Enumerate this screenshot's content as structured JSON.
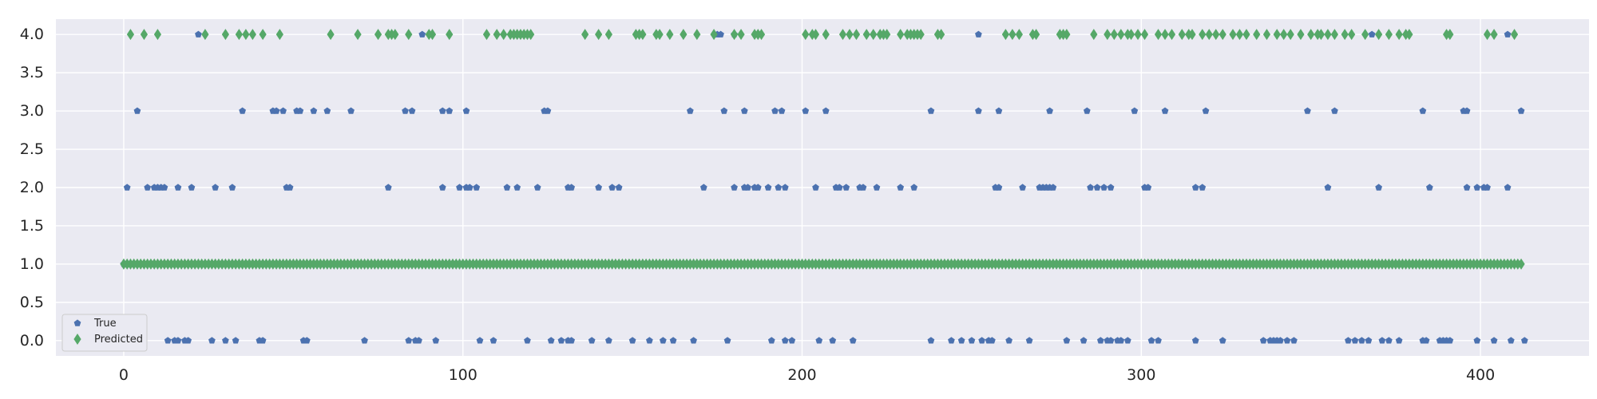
{
  "chart_data": {
    "type": "scatter",
    "xlim": [
      -20,
      432
    ],
    "ylim": [
      -0.2,
      4.2
    ],
    "xticks": [
      0,
      100,
      200,
      300,
      400
    ],
    "yticks": [
      0.0,
      0.5,
      1.0,
      1.5,
      2.0,
      2.5,
      3.0,
      3.5,
      4.0
    ],
    "grid": true,
    "legend_position": "lower-left",
    "series": [
      {
        "name": "True",
        "color": "#4c72b0",
        "marker": "pentagon",
        "points": {
          "0": [
            13,
            15,
            16,
            18,
            19,
            26,
            30,
            33,
            40,
            41,
            53,
            54,
            71,
            84,
            86,
            87,
            92,
            105,
            109,
            119,
            126,
            129,
            131,
            132,
            138,
            143,
            150,
            155,
            159,
            162,
            168,
            178,
            191,
            195,
            197,
            205,
            209,
            215,
            238,
            244,
            247,
            250,
            253,
            255,
            256,
            261,
            267,
            278,
            283,
            288,
            290,
            291,
            293,
            294,
            296,
            303,
            305,
            316,
            324,
            336,
            338,
            339,
            340,
            341,
            343,
            345,
            361,
            363,
            365,
            367,
            371,
            373,
            376,
            383,
            384,
            388,
            389,
            390,
            391,
            399,
            404,
            409,
            413
          ],
          "1": [
            0,
            1,
            2,
            238,
            239,
            240,
            241,
            242,
            243,
            244,
            245,
            246,
            247,
            248,
            249,
            250,
            251,
            252,
            253,
            254,
            255,
            256,
            257,
            258,
            259,
            260,
            261,
            262,
            263,
            264,
            265,
            266,
            267,
            268,
            269,
            270,
            271,
            272,
            273,
            274,
            275,
            276,
            277,
            278,
            279,
            280
          ],
          "2": [
            1,
            7,
            9,
            10,
            11,
            12,
            16,
            20,
            27,
            32,
            48,
            49,
            78,
            94,
            99,
            101,
            102,
            104,
            113,
            116,
            122,
            131,
            132,
            140,
            144,
            146,
            171,
            180,
            183,
            184,
            186,
            187,
            190,
            193,
            195,
            204,
            210,
            211,
            213,
            217,
            218,
            222,
            229,
            233,
            257,
            258,
            265,
            270,
            271,
            272,
            273,
            274,
            285,
            287,
            289,
            291,
            301,
            302,
            316,
            318,
            355,
            370,
            385,
            396,
            399,
            401,
            402,
            408
          ],
          "3": [
            4,
            35,
            44,
            45,
            47,
            51,
            52,
            56,
            60,
            67,
            83,
            85,
            94,
            96,
            101,
            124,
            125,
            167,
            177,
            183,
            192,
            194,
            201,
            207,
            238,
            252,
            258,
            273,
            284,
            298,
            307,
            319,
            349,
            357,
            383,
            395,
            396,
            412
          ],
          "4": [
            22,
            88,
            175,
            176,
            180,
            252,
            368,
            408
          ]
        }
      },
      {
        "name": "Predicted",
        "color": "#55a868",
        "marker": "diamond",
        "points": {
          "1": [
            0,
            1,
            2,
            3,
            4,
            5,
            6,
            7,
            8,
            9,
            10,
            11,
            12,
            13,
            14,
            15,
            16,
            17,
            18,
            19,
            20,
            21,
            22,
            23,
            24,
            25,
            26,
            27,
            28,
            29,
            30,
            31,
            32,
            33,
            34,
            35,
            36,
            37,
            38,
            39,
            40,
            41,
            42,
            43,
            44,
            45,
            46,
            47,
            48,
            49,
            50,
            51,
            52,
            53,
            54,
            55,
            56,
            57,
            58,
            59,
            60,
            61,
            62,
            63,
            64,
            65,
            66,
            67,
            68,
            69,
            70,
            71,
            72,
            73,
            74,
            75,
            76,
            77,
            78,
            79,
            80,
            81,
            82,
            83,
            84,
            85,
            86,
            87,
            88,
            89,
            90,
            91,
            92,
            93,
            94,
            95,
            96,
            97,
            98,
            99,
            100,
            101,
            102,
            103,
            104,
            105,
            106,
            107,
            108,
            109,
            110,
            111,
            112,
            113,
            114,
            115,
            116,
            117,
            118,
            119,
            120,
            121,
            122,
            123,
            124,
            125,
            126,
            127,
            128,
            129,
            130,
            131,
            132,
            133,
            134,
            135,
            136,
            137,
            138,
            139,
            140,
            141,
            142,
            143,
            144,
            145,
            146,
            147,
            148,
            149,
            150,
            151,
            152,
            153,
            154,
            155,
            156,
            157,
            158,
            159,
            160,
            161,
            162,
            163,
            164,
            165,
            166,
            167,
            168,
            169,
            170,
            171,
            172,
            173,
            174,
            175,
            176,
            177,
            178,
            179,
            180,
            181,
            182,
            183,
            184,
            185,
            186,
            187,
            188,
            189,
            190,
            191,
            192,
            193,
            194,
            195,
            196,
            197,
            198,
            199,
            200,
            201,
            202,
            203,
            204,
            205,
            206,
            207,
            208,
            209,
            210,
            211,
            212,
            213,
            214,
            215,
            216,
            217,
            218,
            219,
            220,
            221,
            222,
            223,
            224,
            225,
            226,
            227,
            228,
            229,
            230,
            231,
            232,
            233,
            234,
            235,
            236,
            237,
            238,
            239,
            240,
            241,
            242,
            243,
            244,
            245,
            246,
            247,
            248,
            249,
            250,
            251,
            252,
            253,
            254,
            255,
            256,
            257,
            258,
            259,
            260,
            261,
            262,
            263,
            264,
            265,
            266,
            267,
            268,
            269,
            270,
            271,
            272,
            273,
            274,
            275,
            276,
            277,
            278,
            279,
            280,
            281,
            282,
            283,
            284,
            285,
            286,
            287,
            288,
            289,
            290,
            291,
            292,
            293,
            294,
            295,
            296,
            297,
            298,
            299,
            300,
            301,
            302,
            303,
            304,
            305,
            306,
            307,
            308,
            309,
            310,
            311,
            312,
            313,
            314,
            315,
            316,
            317,
            318,
            319,
            320,
            321,
            322,
            323,
            324,
            325,
            326,
            327,
            328,
            329,
            330,
            331,
            332,
            333,
            334,
            335,
            336,
            337,
            338,
            339,
            340,
            341,
            342,
            343,
            344,
            345,
            346,
            347,
            348,
            349,
            350,
            351,
            352,
            353,
            354,
            355,
            356,
            357,
            358,
            359,
            360,
            361,
            362,
            363,
            364,
            365,
            366,
            367,
            368,
            369,
            370,
            371,
            372,
            373,
            374,
            375,
            376,
            377,
            378,
            379,
            380,
            381,
            382,
            383,
            384,
            385,
            386,
            387,
            388,
            389,
            390,
            391,
            392,
            393,
            394,
            395,
            396,
            397,
            398,
            399,
            400,
            401,
            402,
            403,
            404,
            405,
            406,
            407,
            408,
            409,
            410,
            411,
            412
          ],
          "4": [
            2,
            6,
            10,
            24,
            30,
            34,
            36,
            38,
            41,
            46,
            61,
            69,
            75,
            78,
            79,
            80,
            84,
            90,
            91,
            96,
            107,
            110,
            112,
            114,
            115,
            116,
            117,
            118,
            119,
            120,
            136,
            140,
            143,
            151,
            152,
            153,
            157,
            158,
            161,
            165,
            169,
            174,
            180,
            182,
            186,
            187,
            188,
            201,
            203,
            204,
            207,
            212,
            214,
            216,
            219,
            221,
            223,
            224,
            225,
            229,
            231,
            232,
            233,
            234,
            235,
            240,
            241,
            260,
            262,
            264,
            268,
            269,
            276,
            277,
            278,
            286,
            290,
            292,
            294,
            296,
            297,
            299,
            301,
            305,
            307,
            309,
            312,
            314,
            315,
            318,
            320,
            322,
            324,
            327,
            329,
            331,
            334,
            337,
            340,
            342,
            344,
            347,
            350,
            352,
            353,
            355,
            357,
            360,
            362,
            366,
            370,
            373,
            376,
            378,
            379,
            390,
            391,
            402,
            404,
            410
          ]
        }
      }
    ]
  }
}
